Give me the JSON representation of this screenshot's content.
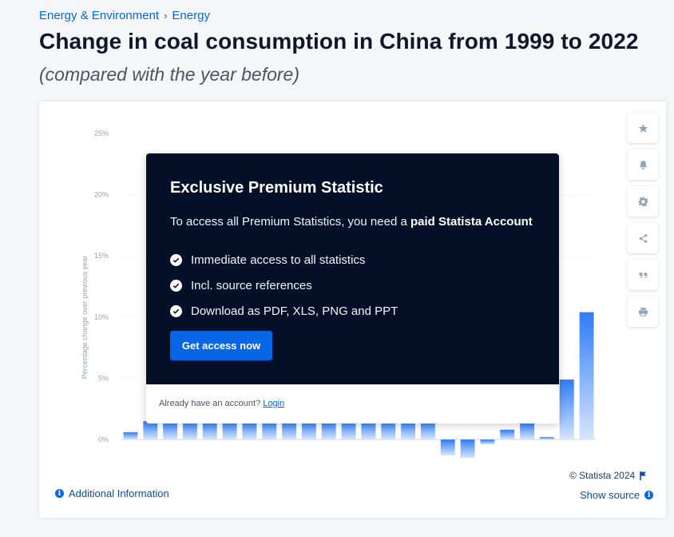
{
  "breadcrumb": {
    "parent": "Energy & Environment",
    "separator": "›",
    "current": "Energy"
  },
  "title": "Change in coal consumption in China from 1999 to 2022",
  "subtitle": "(compared with the year before)",
  "toolbar": {
    "icons": [
      "star-icon",
      "bell-icon",
      "gear-icon",
      "share-icon",
      "quote-icon",
      "print-icon"
    ]
  },
  "paywall": {
    "heading": "Exclusive Premium Statistic",
    "desc_prefix": "To access all Premium Statistics, you need a ",
    "desc_bold": "paid Statista Account",
    "features": [
      "Immediate access to all statistics",
      "Incl. source references",
      "Download as PDF, XLS, PNG and PPT"
    ],
    "cta": "Get access now",
    "login_prompt": "Already have an account?",
    "login_link": "Login"
  },
  "footer": {
    "copyright": "© Statista 2024",
    "show_source": "Show source",
    "additional_info": "Additional Information"
  },
  "colors": {
    "accent": "#0666e5",
    "bar": "#3b82f6",
    "dark": "#041028"
  },
  "chart_data": {
    "type": "bar",
    "ylabel": "Percentage change over previous year",
    "ylim": [
      0,
      25
    ],
    "yticks": [
      "0%",
      "5%",
      "10%",
      "15%",
      "20%",
      "25%"
    ],
    "visible_values": {
      "first": 0.6,
      "hidden_span": 1.5,
      "late": [
        -1.3,
        -1.5,
        -0.4,
        0.8,
        1.4,
        0.2,
        4.9,
        10.4
      ]
    },
    "grid": true
  }
}
